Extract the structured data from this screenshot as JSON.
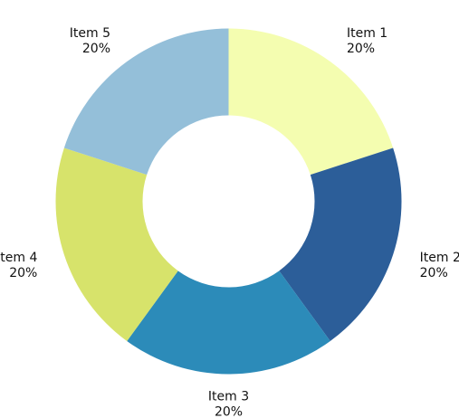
{
  "chart_data": {
    "type": "pie",
    "donut": true,
    "categories": [
      "Item 1",
      "Item 2",
      "Item 3",
      "Item 4",
      "Item 5"
    ],
    "values": [
      20,
      20,
      20,
      20,
      20
    ],
    "value_labels": [
      "20%",
      "20%",
      "20%",
      "20%",
      "20%"
    ],
    "colors": [
      "#f4fdb0",
      "#2c5e99",
      "#2c8bb9",
      "#d7e36b",
      "#94bfd9"
    ],
    "title": "",
    "legend": "none"
  }
}
